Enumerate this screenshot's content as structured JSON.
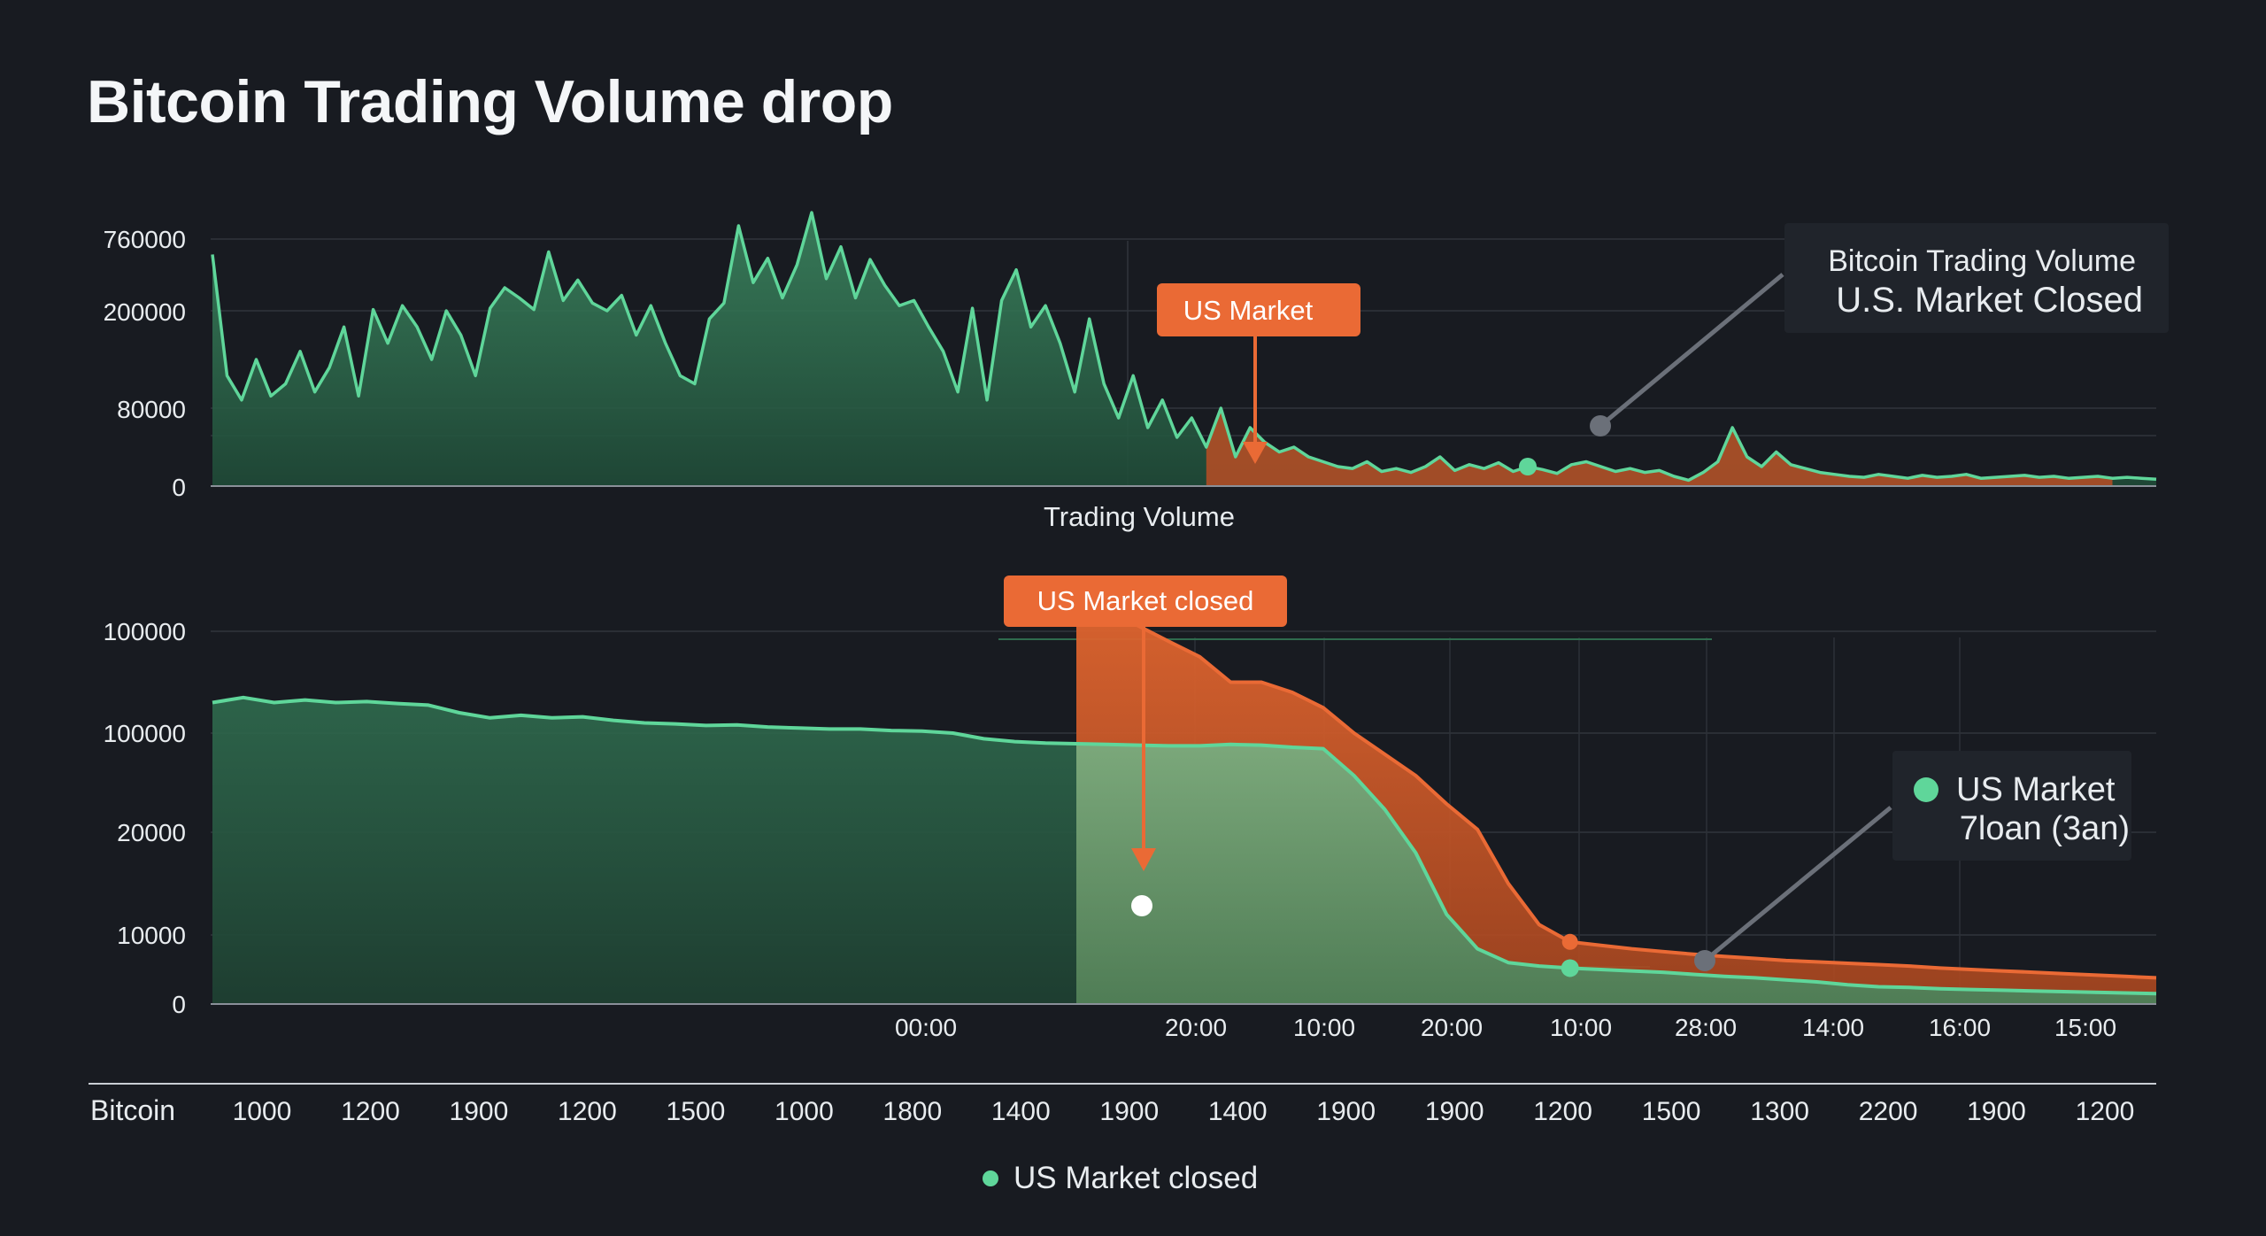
{
  "title": "Bitcoin Trading Volume drop",
  "colors": {
    "background": "#181b21",
    "green": "#5fd69a",
    "green_fill": "#2f6b4e",
    "orange": "#ea6a35",
    "grid": "#3a3f47",
    "callout_bg": "#20242b",
    "text": "#e8ecef"
  },
  "legend": {
    "label": "US Market closed"
  },
  "chart_data": [
    {
      "type": "area",
      "panel": "top",
      "xlabel": "Trading Volume",
      "y_ticks": [
        "760000",
        "200000",
        "80000",
        "0"
      ],
      "series": [
        {
          "values": [
            640000,
            120000,
            90000,
            140000,
            95000,
            110000,
            150000,
            100000,
            130000,
            180000,
            95000,
            210000,
            160000,
            240000,
            180000,
            140000,
            200000,
            170000,
            120000,
            220000,
            380000,
            300000,
            210000,
            660000,
            280000,
            440000,
            260000,
            200000,
            320000,
            170000,
            240000,
            160000,
            120000,
            110000,
            190000,
            260000,
            820000,
            420000,
            610000,
            300000,
            560000,
            880000,
            450000,
            700000,
            300000,
            600000,
            400000,
            240000,
            280000,
            180000,
            150000,
            100000,
            220000,
            90000,
            280000,
            520000,
            180000,
            240000,
            160000,
            100000,
            190000,
            110000,
            70000,
            120000,
            60000,
            90000,
            50000,
            70000,
            40000,
            80000,
            30000,
            60000,
            45000,
            35000,
            40000,
            30000,
            25000,
            20000,
            18000,
            25000,
            15000,
            18000,
            14000,
            20000,
            30000,
            16000,
            22000,
            18000,
            24000,
            15000,
            20000,
            17000,
            13000,
            22000,
            25000,
            20000,
            15000,
            18000,
            14000,
            16000,
            10000,
            6000,
            14000,
            25000,
            60000,
            30000,
            20000,
            35000,
            22000,
            18000,
            14000,
            12000,
            10000,
            9000,
            12000,
            10000,
            8000,
            11000,
            9000,
            10000,
            12000,
            8000,
            9000,
            10000,
            11000,
            9000,
            10000,
            8000,
            9000,
            10000,
            8000,
            9000,
            8000,
            7000
          ]
        }
      ],
      "highlight_range": [
        68,
        130
      ],
      "annotation": {
        "label": "US Market",
        "at_index": 68
      },
      "marker": {
        "at_index": 90
      },
      "callout": {
        "line1": "Bitcoin Trading Volume",
        "line2": "U.S.  Market Closed"
      }
    },
    {
      "type": "area",
      "panel": "bottom",
      "y_ticks": [
        "100000",
        "100000",
        "20000",
        "10000",
        "0"
      ],
      "x_ticks": [
        "00:00",
        "20:00",
        "10:00",
        "20:00",
        "10:00",
        "28:00",
        "14:00",
        "16:00",
        "15:00"
      ],
      "series": [
        {
          "values": [
            96000,
            97000,
            96000,
            96500,
            96000,
            96200,
            95800,
            95500,
            94000,
            93000,
            93500,
            93000,
            93200,
            92500,
            92000,
            91800,
            91500,
            91600,
            91200,
            91000,
            90800,
            90800,
            90500,
            90400,
            90000,
            86000,
            84000,
            83000,
            82500,
            82000,
            81500,
            81000,
            81000,
            82000,
            81500,
            80000,
            79000,
            60000,
            36000,
            18000,
            12000,
            8000,
            6000,
            5500,
            5200,
            5000,
            4800,
            4600,
            4300,
            4000,
            3800,
            3500,
            3200,
            2800,
            2500,
            2400,
            2200,
            2100,
            2000,
            1900,
            1800,
            1700,
            1600,
            1500
          ]
        }
      ],
      "orange_series": {
        "start_index": 28,
        "values": [
          115000,
          118000,
          112000,
          108000,
          105000,
          100000,
          100000,
          98000,
          95000,
          90000,
          75000,
          60000,
          40000,
          22000,
          15000,
          11000,
          9000,
          8500,
          8000,
          7600,
          7200,
          6900,
          6600,
          6300,
          6100,
          5900,
          5700,
          5500,
          5200,
          5000,
          4800,
          4600,
          4400,
          4200,
          4000,
          3800
        ]
      },
      "annotation": {
        "label": "US Market closed"
      },
      "callout": {
        "line1": "US Market",
        "line2": "7loan (3an)"
      }
    }
  ],
  "bottom_axis": {
    "label": "Bitcoin",
    "ticks": [
      "1000",
      "1200",
      "1900",
      "1200",
      "1500",
      "1000",
      "1800",
      "1400",
      "1900",
      "1400",
      "1900",
      "1900",
      "1200",
      "1500",
      "1300",
      "2200",
      "1900",
      "1200"
    ]
  }
}
